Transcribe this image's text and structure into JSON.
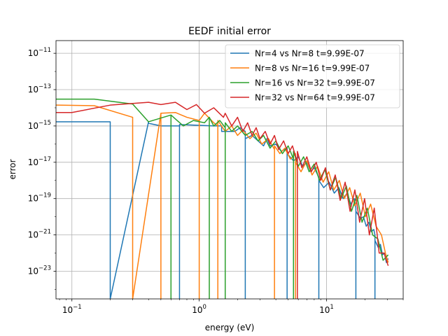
{
  "chart_data": {
    "type": "line",
    "title": "EEDF initial error",
    "xlabel": "energy (eV)",
    "ylabel": "error",
    "xscale": "log",
    "yscale": "log",
    "xlim": [
      0.075,
      40
    ],
    "ylim": [
      3e-25,
      5e-11
    ],
    "grid": true,
    "legend_position": "top-right",
    "x_ticks": [
      {
        "value": 0.1,
        "base": "10",
        "exp": "−1"
      },
      {
        "value": 1,
        "base": "10",
        "exp": "0"
      },
      {
        "value": 10,
        "base": "10",
        "exp": "1"
      }
    ],
    "y_ticks": [
      {
        "value": 1e-23,
        "base": "10",
        "exp": "−23"
      },
      {
        "value": 1e-21,
        "base": "10",
        "exp": "−21"
      },
      {
        "value": 1e-19,
        "base": "10",
        "exp": "−19"
      },
      {
        "value": 1e-17,
        "base": "10",
        "exp": "−17"
      },
      {
        "value": 1e-15,
        "base": "10",
        "exp": "−15"
      },
      {
        "value": 1e-13,
        "base": "10",
        "exp": "−13"
      },
      {
        "value": 1e-11,
        "base": "10",
        "exp": "−11"
      }
    ],
    "series": [
      {
        "name": "Nr=4 vs Nr=8 t=9.99E-07",
        "color": "#1f77b4",
        "x": [
          0.075,
          0.2,
          0.2,
          0.2,
          0.4,
          0.4,
          0.5,
          0.7,
          0.7,
          0.7,
          1.3,
          1.5,
          1.5,
          1.9,
          2.1,
          2.3,
          2.3,
          2.3,
          2.6,
          2.9,
          3.2,
          3.4,
          3.6,
          4.0,
          4.4,
          4.9,
          4.9,
          4.9,
          5.5,
          6.0,
          6.5,
          7.0,
          7.5,
          8.0,
          8.7,
          8.7,
          8.7,
          9.5,
          10.5,
          11.5,
          12.5,
          13.5,
          14.5,
          15.5,
          16.5,
          17.0,
          17.0,
          17.0,
          18.5,
          19.5,
          20.5,
          21.5,
          22.5,
          23.5,
          24.0,
          24.0,
          24.0,
          25.5,
          26.5,
          27.5,
          28.5,
          29.5,
          30.5
        ],
        "y": [
          1.7e-15,
          1.7e-15,
          3e-25,
          3e-25,
          1.7e-15,
          1.4e-15,
          1e-15,
          1e-15,
          3e-25,
          1.2e-15,
          1e-15,
          1e-15,
          5e-16,
          5e-16,
          8e-16,
          5e-16,
          3e-25,
          2e-16,
          3e-16,
          1.5e-16,
          8e-17,
          2e-16,
          8e-17,
          1e-16,
          4e-17,
          6e-17,
          3e-25,
          3e-17,
          1.2e-17,
          2e-17,
          6e-18,
          1e-17,
          3e-18,
          5e-18,
          1.5e-18,
          3e-25,
          1e-18,
          4e-19,
          8e-19,
          2e-19,
          4e-19,
          1e-19,
          2e-19,
          5e-20,
          1e-19,
          3e-20,
          3e-25,
          2e-20,
          8e-21,
          1e-20,
          3e-21,
          5e-21,
          1.5e-21,
          2e-21,
          1e-21,
          3e-25,
          5e-22,
          2e-22,
          3e-22,
          8e-23,
          1e-22,
          3e-23,
          5e-23
        ]
      },
      {
        "name": "Nr=8 vs Nr=16 t=9.99E-07",
        "color": "#ff7f0e",
        "x": [
          0.075,
          0.15,
          0.3,
          0.3,
          0.3,
          0.5,
          0.5,
          0.5,
          0.65,
          0.8,
          1.0,
          1.0,
          1.0,
          1.1,
          1.3,
          1.4,
          1.4,
          1.4,
          1.6,
          1.8,
          2.0,
          2.2,
          2.5,
          2.8,
          3.1,
          3.5,
          3.9,
          3.9,
          3.9,
          4.3,
          4.7,
          5.2,
          5.7,
          5.7,
          5.7,
          6.3,
          7.0,
          7.7,
          8.5,
          9.4,
          10.4,
          11.4,
          12.6,
          13.8,
          15.2,
          16.7,
          18.4,
          20.2,
          22.2,
          24.5,
          27.0,
          29.0,
          30.5
        ],
        "y": [
          1.4e-14,
          1.3e-14,
          3e-15,
          3e-25,
          3e-25,
          5e-15,
          3e-25,
          5e-15,
          5.5e-15,
          3e-15,
          2e-15,
          3e-25,
          2e-15,
          5e-15,
          1.5e-15,
          1e-15,
          3e-25,
          2e-15,
          5e-16,
          1e-15,
          3e-16,
          6e-16,
          2e-16,
          4e-16,
          1e-16,
          2e-16,
          5e-17,
          3e-25,
          8e-17,
          3e-17,
          6e-17,
          1.5e-17,
          3e-17,
          3e-25,
          1e-17,
          3e-18,
          1.2e-17,
          2e-18,
          6e-18,
          8e-19,
          3e-18,
          3e-19,
          1e-18,
          1e-19,
          4e-19,
          4e-20,
          2e-19,
          1e-20,
          5e-20,
          3e-21,
          1e-21,
          1e-22,
          3e-23
        ]
      },
      {
        "name": "Nr=16 vs Nr=32 t=9.99E-07",
        "color": "#2ca02c",
        "x": [
          0.075,
          0.15,
          0.3,
          0.4,
          0.6,
          0.6,
          0.6,
          0.75,
          0.9,
          1.1,
          1.2,
          1.2,
          1.2,
          1.3,
          1.45,
          1.6,
          1.6,
          1.6,
          1.8,
          2.0,
          2.3,
          2.6,
          2.9,
          3.2,
          3.6,
          4.0,
          4.5,
          5.0,
          5.5,
          5.5,
          5.5,
          6.0,
          6.6,
          7.3,
          8.0,
          8.8,
          9.7,
          10.7,
          11.8,
          13.0,
          14.3,
          15.7,
          17.3,
          19.0,
          20.9,
          23.0,
          25.3,
          27.8,
          30.5
        ],
        "y": [
          3e-14,
          3e-14,
          1.6e-14,
          1.7e-15,
          4e-15,
          3e-25,
          4e-15,
          1e-15,
          2e-15,
          1.5e-15,
          3e-15,
          3e-25,
          3e-15,
          1e-15,
          2e-15,
          8e-16,
          3e-25,
          1.5e-15,
          5e-16,
          1e-15,
          3e-16,
          5e-16,
          1.5e-16,
          3e-16,
          6e-17,
          1.5e-16,
          3e-17,
          8e-17,
          1.5e-17,
          3e-25,
          4e-17,
          6e-18,
          2e-17,
          3e-18,
          8e-18,
          1e-18,
          4e-18,
          3e-19,
          1.5e-18,
          1e-19,
          5e-19,
          2e-20,
          1.5e-19,
          5e-21,
          3e-20,
          1e-21,
          6e-22,
          4e-23,
          8e-23
        ]
      },
      {
        "name": "Nr=32 vs Nr=64 t=9.99E-07",
        "color": "#d62728",
        "x": [
          0.075,
          0.1,
          0.2,
          0.4,
          0.5,
          0.65,
          0.8,
          0.95,
          1.1,
          1.3,
          1.55,
          1.6,
          1.8,
          2.0,
          2.2,
          2.4,
          2.6,
          2.8,
          3.0,
          3.3,
          3.6,
          3.9,
          4.2,
          4.6,
          5.0,
          5.4,
          5.9,
          5.9,
          5.9,
          6.4,
          7.0,
          7.6,
          8.3,
          9.0,
          9.8,
          10.7,
          11.7,
          12.8,
          14.0,
          15.3,
          16.7,
          18.2,
          19.9,
          21.7,
          23.7,
          25.9,
          28.3,
          30.5
        ],
        "y": [
          5.5e-15,
          5.5e-15,
          1.4e-14,
          2e-14,
          1.5e-14,
          2e-14,
          8e-15,
          1.5e-14,
          5e-15,
          1e-14,
          3e-15,
          5e-15,
          1e-15,
          3e-15,
          5e-16,
          1.5e-15,
          3e-16,
          8e-16,
          2e-16,
          5e-16,
          1e-16,
          3e-16,
          5e-17,
          1.5e-16,
          3e-17,
          8e-17,
          1e-17,
          3e-25,
          4e-17,
          5e-18,
          2e-17,
          3e-18,
          1e-17,
          1e-18,
          5e-18,
          3e-19,
          2e-18,
          8e-20,
          8e-19,
          2e-20,
          3e-19,
          5e-21,
          1e-19,
          1e-21,
          3e-20,
          1e-22,
          1e-22,
          2e-23
        ]
      }
    ]
  }
}
